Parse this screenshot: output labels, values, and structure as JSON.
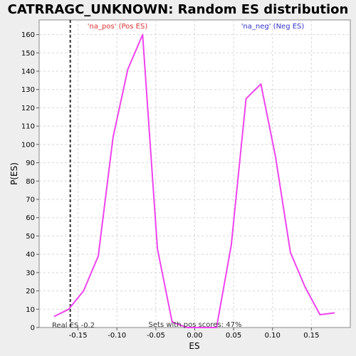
{
  "chart_data": {
    "type": "line",
    "title": "CATRRAGC_UNKNOWN: Random ES distribution",
    "xlabel": "ES",
    "ylabel": "P(ES)",
    "xlim": [
      -0.2,
      0.2
    ],
    "ylim": [
      0,
      168
    ],
    "xticks": [
      -0.15,
      -0.1,
      -0.05,
      0.0,
      0.05,
      0.1,
      0.15
    ],
    "xtick_labels": [
      "-0.15",
      "-0.10",
      "-0.05",
      "0.00",
      "0.05",
      "0.10",
      "0.15"
    ],
    "yticks": [
      0,
      10,
      20,
      30,
      40,
      50,
      60,
      70,
      80,
      90,
      100,
      110,
      120,
      130,
      140,
      150,
      160
    ],
    "grid": true,
    "series": [
      {
        "color": "#ee44ee",
        "x": [
          -0.181,
          -0.162,
          -0.143,
          -0.124,
          -0.105,
          -0.086,
          -0.067,
          -0.048,
          -0.029,
          -0.01,
          0.009,
          0.028,
          0.047,
          0.066,
          0.085,
          0.104,
          0.123,
          0.142,
          0.161,
          0.18
        ],
        "y": [
          6,
          10,
          20,
          39,
          104,
          141,
          160,
          43,
          3,
          0,
          0,
          0,
          45,
          125,
          133,
          93,
          41,
          22,
          7,
          8
        ]
      }
    ],
    "real_es": -0.16,
    "annotations": {
      "pos_label": "'na_pos' (Pos ES)",
      "neg_label": "'na_neg' (Neg ES)",
      "real_es_label": "Real ES -0.2",
      "sets_label": "Sets with pos scores: 47%"
    },
    "colors": {
      "pos": "#dd3333",
      "neg": "#3333cc",
      "line": "#ee44ee",
      "real_es": "#333333"
    }
  }
}
